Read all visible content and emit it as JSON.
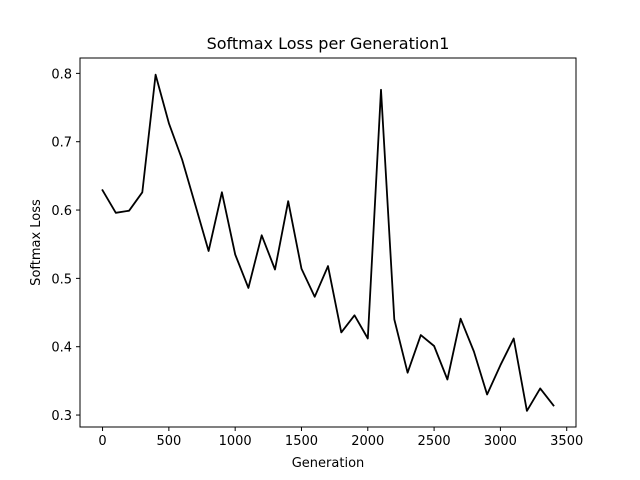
{
  "chart_data": {
    "type": "line",
    "title": "Softmax Loss per Generation1",
    "xlabel": "Generation",
    "ylabel": "Softmax Loss",
    "xlim": [
      -170,
      3570
    ],
    "ylim": [
      0.2825,
      0.8225
    ],
    "xticks": [
      0,
      500,
      1000,
      1500,
      2000,
      2500,
      3000,
      3500
    ],
    "yticks": [
      0.3,
      0.4,
      0.5,
      0.6,
      0.7,
      0.8
    ],
    "xtick_labels": [
      "0",
      "500",
      "1000",
      "1500",
      "2000",
      "2500",
      "3000",
      "3500"
    ],
    "ytick_labels": [
      "0.3",
      "0.4",
      "0.5",
      "0.6",
      "0.7",
      "0.8"
    ],
    "grid": false,
    "line_color": "#000000",
    "series": [
      {
        "x": [
          0,
          100,
          200,
          300,
          400,
          500,
          600,
          700,
          800,
          900,
          1000,
          1100,
          1200,
          1300,
          1400,
          1500,
          1600,
          1700,
          1800,
          1900,
          2000,
          2100,
          2200,
          2300,
          2400,
          2500,
          2600,
          2700,
          2800,
          2900,
          3000,
          3100,
          3200,
          3300,
          3400
        ],
        "y": [
          0.629,
          0.596,
          0.599,
          0.626,
          0.798,
          0.727,
          0.674,
          0.607,
          0.54,
          0.626,
          0.535,
          0.486,
          0.563,
          0.513,
          0.613,
          0.514,
          0.473,
          0.518,
          0.421,
          0.446,
          0.412,
          0.776,
          0.44,
          0.362,
          0.417,
          0.401,
          0.352,
          0.441,
          0.393,
          0.33,
          0.373,
          0.412,
          0.306,
          0.339,
          0.314
        ]
      }
    ]
  }
}
